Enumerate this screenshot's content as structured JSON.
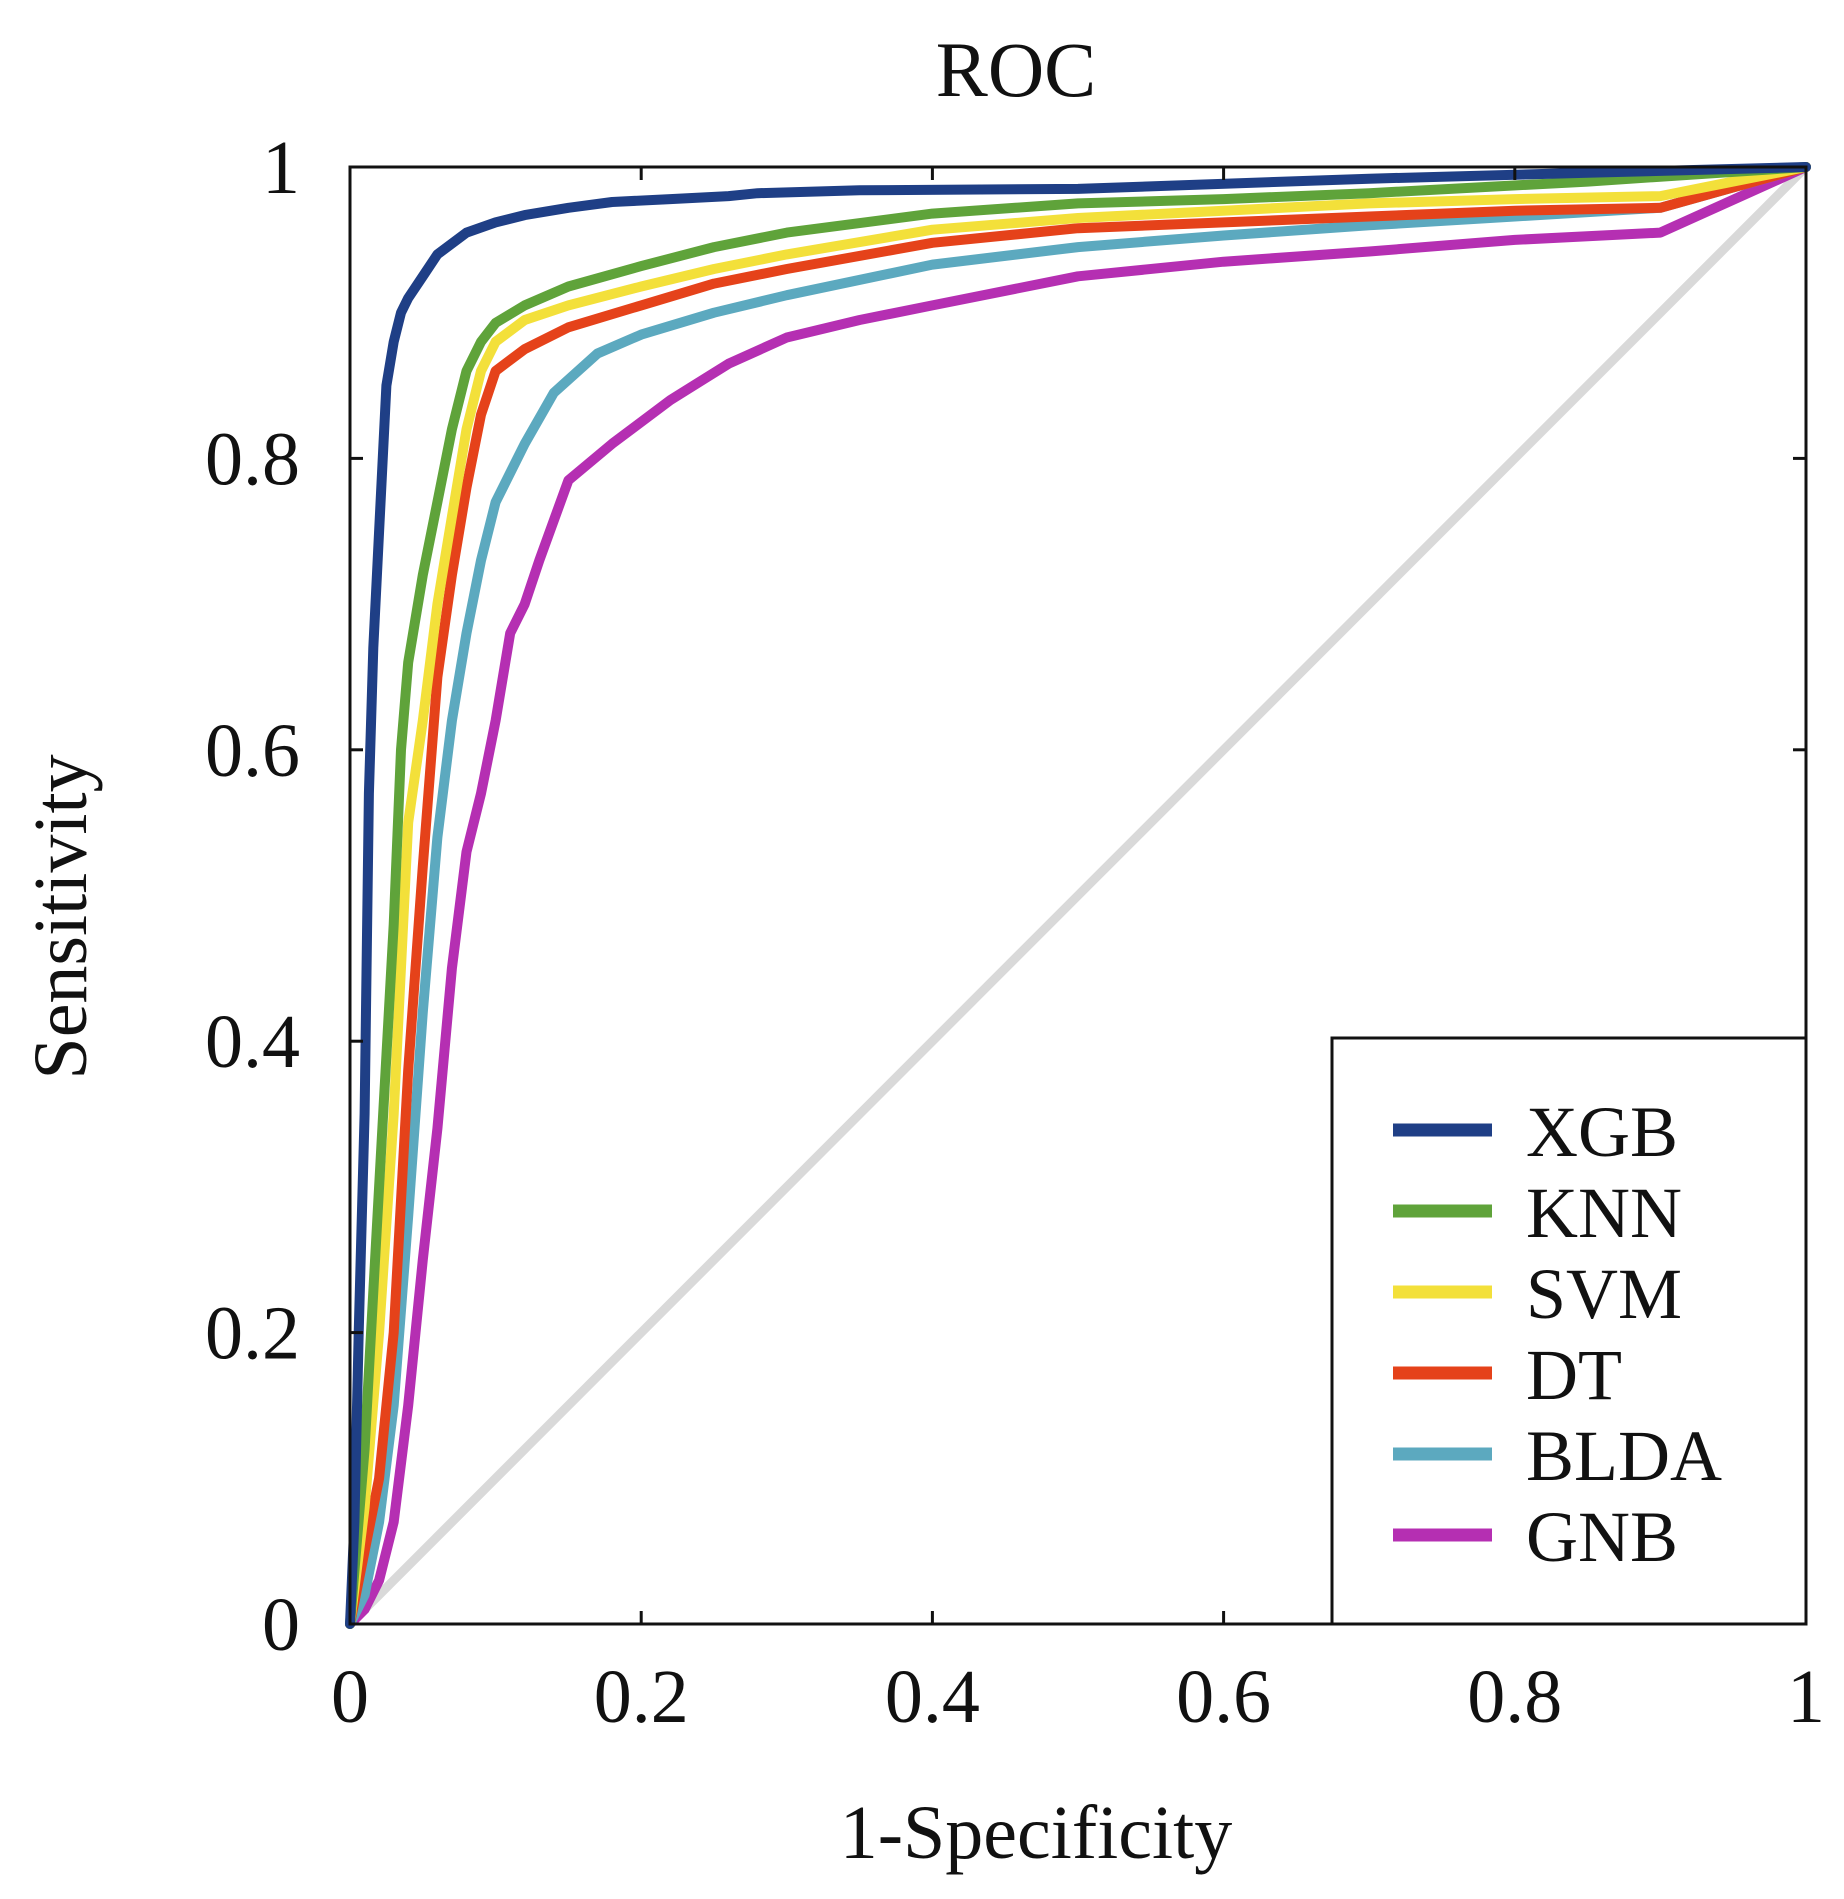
{
  "chart_data": {
    "type": "line",
    "title": "ROC",
    "xlabel": "1-Specificity",
    "ylabel": "Sensitivity",
    "xlim": [
      0,
      1
    ],
    "ylim": [
      0,
      1
    ],
    "x_ticks": [
      0,
      0.2,
      0.4,
      0.6,
      0.8,
      1
    ],
    "y_ticks": [
      0,
      0.2,
      0.4,
      0.6,
      0.8,
      1
    ],
    "x_tick_labels": [
      "0",
      "0.2",
      "0.4",
      "0.6",
      "0.8",
      "1"
    ],
    "y_tick_labels": [
      "0",
      "0.2",
      "0.4",
      "0.6",
      "0.8",
      "1"
    ],
    "grid": false,
    "legend_position": "bottom-right",
    "reference_line": {
      "name": "chance",
      "color": "#d9d9d9",
      "x": [
        0,
        1
      ],
      "y": [
        0,
        1
      ]
    },
    "series": [
      {
        "name": "XGB",
        "color": "#1f3f86",
        "x": [
          0,
          0.003,
          0.006,
          0.01,
          0.013,
          0.016,
          0.02,
          0.025,
          0.03,
          0.035,
          0.04,
          0.05,
          0.06,
          0.08,
          0.1,
          0.12,
          0.15,
          0.18,
          0.22,
          0.26,
          0.28,
          0.35,
          0.5,
          0.7,
          0.85,
          1
        ],
        "y": [
          0,
          0.07,
          0.2,
          0.35,
          0.57,
          0.67,
          0.75,
          0.85,
          0.88,
          0.9,
          0.91,
          0.925,
          0.94,
          0.955,
          0.962,
          0.967,
          0.972,
          0.976,
          0.978,
          0.98,
          0.982,
          0.984,
          0.985,
          0.992,
          0.996,
          1
        ]
      },
      {
        "name": "KNN",
        "color": "#5fa33a",
        "x": [
          0,
          0.01,
          0.02,
          0.03,
          0.035,
          0.04,
          0.05,
          0.06,
          0.07,
          0.08,
          0.09,
          0.1,
          0.12,
          0.15,
          0.2,
          0.25,
          0.3,
          0.4,
          0.5,
          0.6,
          0.7,
          0.85,
          1
        ],
        "y": [
          0,
          0.12,
          0.3,
          0.48,
          0.6,
          0.66,
          0.72,
          0.77,
          0.82,
          0.86,
          0.88,
          0.893,
          0.905,
          0.918,
          0.932,
          0.945,
          0.955,
          0.968,
          0.975,
          0.978,
          0.982,
          0.99,
          1
        ]
      },
      {
        "name": "SVM",
        "color": "#f3e03a",
        "x": [
          0,
          0.01,
          0.02,
          0.03,
          0.04,
          0.05,
          0.06,
          0.07,
          0.08,
          0.09,
          0.1,
          0.12,
          0.15,
          0.2,
          0.25,
          0.3,
          0.4,
          0.5,
          0.6,
          0.7,
          0.8,
          0.9,
          1
        ],
        "y": [
          0,
          0.08,
          0.2,
          0.35,
          0.55,
          0.62,
          0.7,
          0.76,
          0.82,
          0.86,
          0.88,
          0.895,
          0.905,
          0.918,
          0.93,
          0.94,
          0.957,
          0.965,
          0.97,
          0.975,
          0.978,
          0.98,
          1
        ]
      },
      {
        "name": "DT",
        "color": "#e5421a",
        "x": [
          0,
          0.01,
          0.02,
          0.03,
          0.04,
          0.05,
          0.06,
          0.07,
          0.08,
          0.09,
          0.1,
          0.12,
          0.15,
          0.2,
          0.25,
          0.3,
          0.4,
          0.5,
          0.6,
          0.7,
          0.8,
          0.9,
          1
        ],
        "y": [
          0,
          0.05,
          0.1,
          0.2,
          0.38,
          0.52,
          0.65,
          0.72,
          0.78,
          0.83,
          0.86,
          0.875,
          0.89,
          0.905,
          0.92,
          0.93,
          0.948,
          0.958,
          0.962,
          0.966,
          0.97,
          0.972,
          1
        ]
      },
      {
        "name": "BLDA",
        "color": "#5ca9bf",
        "x": [
          0,
          0.01,
          0.02,
          0.03,
          0.04,
          0.05,
          0.06,
          0.07,
          0.08,
          0.09,
          0.1,
          0.12,
          0.14,
          0.17,
          0.2,
          0.25,
          0.3,
          0.4,
          0.5,
          0.6,
          0.7,
          0.8,
          0.9,
          1
        ],
        "y": [
          0,
          0.02,
          0.07,
          0.15,
          0.28,
          0.42,
          0.54,
          0.62,
          0.68,
          0.73,
          0.77,
          0.81,
          0.845,
          0.872,
          0.885,
          0.9,
          0.912,
          0.933,
          0.945,
          0.953,
          0.96,
          0.966,
          0.972,
          1
        ]
      },
      {
        "name": "GNB",
        "color": "#b52fb2",
        "x": [
          0,
          0.01,
          0.02,
          0.03,
          0.04,
          0.05,
          0.06,
          0.07,
          0.08,
          0.09,
          0.1,
          0.11,
          0.12,
          0.13,
          0.15,
          0.18,
          0.22,
          0.26,
          0.3,
          0.35,
          0.4,
          0.5,
          0.6,
          0.7,
          0.8,
          0.9,
          1
        ],
        "y": [
          0,
          0.01,
          0.03,
          0.07,
          0.15,
          0.25,
          0.34,
          0.45,
          0.53,
          0.57,
          0.62,
          0.68,
          0.7,
          0.73,
          0.785,
          0.81,
          0.84,
          0.865,
          0.883,
          0.895,
          0.905,
          0.925,
          0.935,
          0.942,
          0.95,
          0.955,
          1
        ]
      }
    ]
  }
}
